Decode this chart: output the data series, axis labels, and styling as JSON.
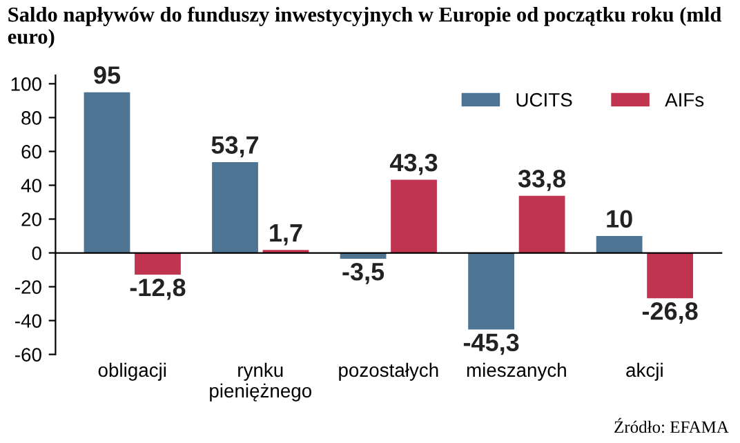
{
  "chart_data": {
    "type": "bar",
    "title": "Saldo napływów do funduszy inwestycyjnych w Europie od początku roku (mld euro)",
    "categories": [
      "obligacji",
      "rynku\npieniężnego",
      "pozostałych",
      "mieszanych",
      "akcji"
    ],
    "series": [
      {
        "name": "UCITS",
        "color": "#4d7493",
        "values": [
          95,
          53.7,
          -3.5,
          -45.3,
          10
        ],
        "value_labels": [
          "95",
          "53,7",
          "-3,5",
          "-45,3",
          "10"
        ]
      },
      {
        "name": "AIFs",
        "color": "#c0344f",
        "values": [
          -12.8,
          1.7,
          43.3,
          33.8,
          -26.8
        ],
        "value_labels": [
          "-12,8",
          "1,7",
          "43,3",
          "33,8",
          "-26,8"
        ]
      }
    ],
    "ylim": [
      -60,
      105
    ],
    "yticks": [
      -60,
      -40,
      -20,
      0,
      20,
      40,
      60,
      80,
      100
    ],
    "legend": "top right",
    "annotations": [
      "Źródło: EFAMA"
    ]
  }
}
